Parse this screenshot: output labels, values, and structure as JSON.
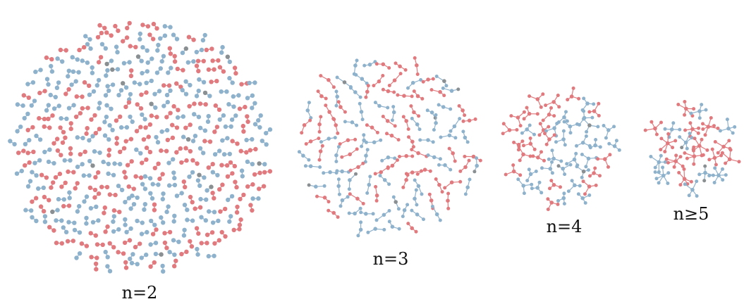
{
  "colors": {
    "blue": "#8fb2cc",
    "red": "#e17a7e",
    "gray": "#8a8f91",
    "background": "#ffffff"
  },
  "clusters": [
    {
      "id": "n2",
      "label": "n=2",
      "component_size": 2
    },
    {
      "id": "n3",
      "label": "n=3",
      "component_size": 3
    },
    {
      "id": "n4",
      "label": "n=4",
      "component_size": 4
    },
    {
      "id": "n5",
      "label": "n≥5",
      "component_size": 5
    }
  ]
}
